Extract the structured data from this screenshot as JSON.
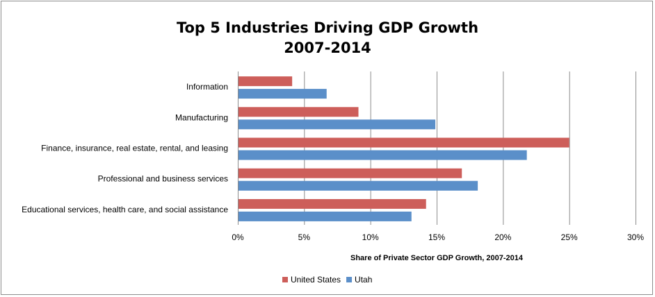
{
  "chart_data": {
    "type": "bar",
    "orientation": "horizontal",
    "title": "Top 5 Industries Driving GDP Growth",
    "subtitle": "2007-2014",
    "xlabel": "Share of Private Sector GDP Growth, 2007-2014",
    "ylabel": "",
    "categories": [
      "Information",
      "Manufacturing",
      "Finance, insurance, real estate, rental, and leasing",
      "Professional and business services",
      "Educational services, health care, and social assistance"
    ],
    "series": [
      {
        "name": "United States",
        "color": "#cd5e5a",
        "values": [
          4.1,
          9.1,
          25.0,
          16.9,
          14.2
        ]
      },
      {
        "name": "Utah",
        "color": "#5b8fc9",
        "values": [
          6.7,
          14.9,
          21.8,
          18.1,
          13.1
        ]
      }
    ],
    "xlim": [
      0,
      30
    ],
    "xticks": [
      0,
      5,
      10,
      15,
      20,
      25,
      30
    ],
    "xtick_labels": [
      "0%",
      "5%",
      "10%",
      "15%",
      "20%",
      "25%",
      "30%"
    ],
    "grid": true,
    "legend_position": "bottom"
  }
}
